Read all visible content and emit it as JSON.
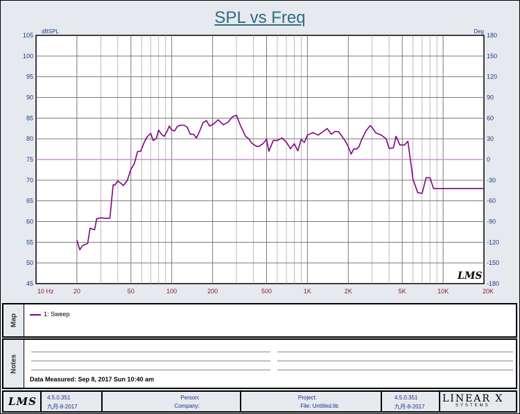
{
  "chart_data": {
    "type": "line",
    "title": "SPL vs Freq",
    "ylabel": "dBSPL",
    "y2label": "Deg",
    "xscale": "log",
    "xlim": [
      10,
      20000
    ],
    "ylim": [
      45,
      105
    ],
    "y2lim": [
      -180,
      180
    ],
    "grid": true,
    "x_tick_labels": [
      "10 Hz",
      "20",
      "50",
      "100",
      "200",
      "500",
      "1K",
      "2K",
      "5K",
      "10K",
      "20K"
    ],
    "x_tick_values": [
      10,
      20,
      50,
      100,
      200,
      500,
      1000,
      2000,
      5000,
      10000,
      20000
    ],
    "y_ticks": [
      105,
      100,
      95,
      90,
      85,
      80,
      75,
      70,
      65,
      60,
      55,
      50,
      45
    ],
    "y2_ticks": [
      180,
      150,
      120,
      90,
      60,
      30,
      0,
      -30,
      -60,
      -90,
      -120,
      -150,
      -180
    ],
    "reference_line": {
      "y": 75,
      "color": "#cc77cc"
    },
    "series": [
      {
        "name": "1: Sweep",
        "color": "#800080",
        "x": [
          20,
          21,
          22,
          24,
          25,
          27,
          28,
          30,
          32,
          35,
          37,
          38,
          40,
          42,
          44,
          47,
          50,
          53,
          56,
          59,
          63,
          66,
          70,
          73,
          77,
          80,
          84,
          88,
          92,
          96,
          100,
          105,
          110,
          117,
          123,
          130,
          137,
          145,
          152,
          160,
          170,
          180,
          190,
          200,
          220,
          240,
          260,
          280,
          300,
          320,
          350,
          370,
          390,
          420,
          440,
          470,
          500,
          520,
          560,
          600,
          650,
          700,
          750,
          800,
          850,
          900,
          950,
          1000,
          1100,
          1200,
          1300,
          1400,
          1500,
          1600,
          1700,
          1800,
          1900,
          2000,
          2100,
          2200,
          2300,
          2400,
          2500,
          2700,
          2900,
          3000,
          3200,
          3500,
          3800,
          4000,
          4300,
          4500,
          4800,
          5200,
          5500,
          6000,
          6500,
          7000,
          7500,
          8000,
          8500,
          9000,
          9500,
          10000,
          10500,
          11000,
          12000,
          12500,
          13000,
          14000,
          15000,
          16000,
          17000,
          18000,
          19000,
          20000
        ],
        "y": [
          55.5,
          53.2,
          54.2,
          54.7,
          58.4,
          58.0,
          60.7,
          60.9,
          60.8,
          60.8,
          68.9,
          68.8,
          69.8,
          69.3,
          68.7,
          69.9,
          72.6,
          74.0,
          76.9,
          77.0,
          79.3,
          80.5,
          81.3,
          79.6,
          80.1,
          82.1,
          81.1,
          80.6,
          81.7,
          83.1,
          82.1,
          81.9,
          83.0,
          83.3,
          83.3,
          82.8,
          81.1,
          81.1,
          80.2,
          81.7,
          83.9,
          84.4,
          83.1,
          83.4,
          84.6,
          83.4,
          84.0,
          85.3,
          85.7,
          83.3,
          80.6,
          80.0,
          78.9,
          78.2,
          78.2,
          78.8,
          79.9,
          77.0,
          79.6,
          79.6,
          80.2,
          79.2,
          77.6,
          78.8,
          77.1,
          79.9,
          79.1,
          80.9,
          81.5,
          80.9,
          81.7,
          82.5,
          81.1,
          81.8,
          81.7,
          80.6,
          79.5,
          78.1,
          76.3,
          77.6,
          77.5,
          78.1,
          79.7,
          81.9,
          83.2,
          82.7,
          81.4,
          80.9,
          80.0,
          77.7,
          77.8,
          80.6,
          78.5,
          78.5,
          79.4,
          70.2,
          67.0,
          66.8,
          70.6,
          70.6,
          68.0,
          68.0,
          68.0,
          68.0,
          68.0,
          68.0,
          68.0,
          68.0,
          68.0,
          68.0,
          68.0,
          68.0,
          68.0,
          68.0,
          68.0,
          68.0
        ]
      }
    ]
  },
  "map": {
    "label": "Map",
    "legend_entry": "1: Sweep"
  },
  "notes": {
    "label": "Notes",
    "date_measured": "Data Measured: Sep 8, 2017 Sun 10:40 am"
  },
  "footer": {
    "logo_text": "LMS",
    "version_left": "4.5.0.351",
    "date_left": "九月-8-2017",
    "person_label": "Person:",
    "company_label": "Company:",
    "project_label": "Project:",
    "file_label": "File: Untitled.lib",
    "version_right": "4.5.0.351",
    "date_right": "九月-8-2017",
    "brand": "LINEAR X",
    "brand_sub": "SYSTEMS"
  },
  "watermark": "LMS"
}
